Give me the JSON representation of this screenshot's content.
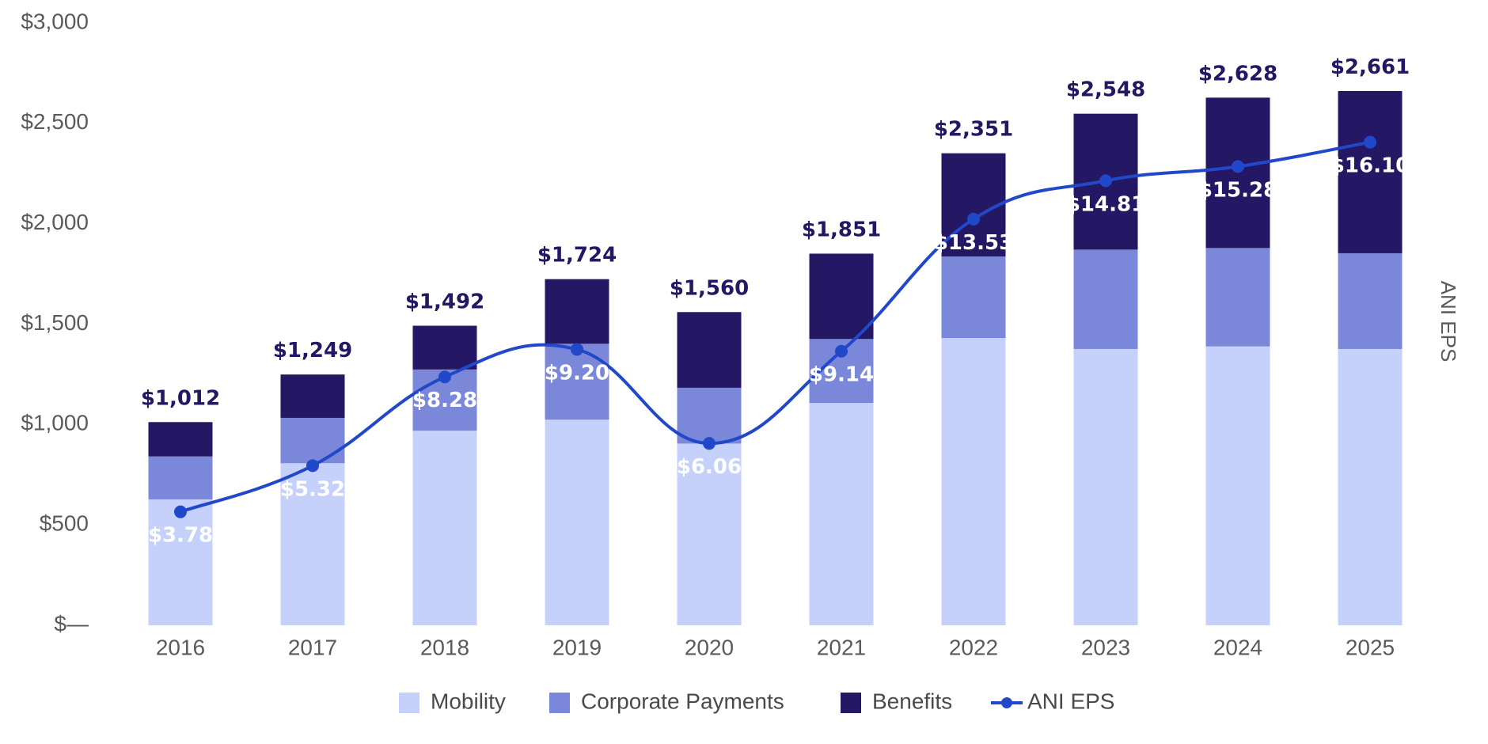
{
  "chart_data": {
    "type": "bar",
    "stacked": true,
    "categories": [
      "2016",
      "2017",
      "2018",
      "2019",
      "2020",
      "2021",
      "2022",
      "2023",
      "2024",
      "2025"
    ],
    "series": [
      {
        "name": "Mobility",
        "color": "#c5d0fb",
        "values": [
          627,
          807,
          969,
          1024,
          905,
          1107,
          1431,
          1376,
          1389,
          1376
        ]
      },
      {
        "name": "Corporate Payments",
        "color": "#7b87d9",
        "values": [
          214,
          226,
          305,
          378,
          278,
          319,
          406,
          495,
          490,
          477
        ]
      },
      {
        "name": "Benefits",
        "color": "#241763",
        "values": [
          171,
          216,
          218,
          322,
          377,
          425,
          514,
          677,
          749,
          808
        ]
      }
    ],
    "totals": [
      1012,
      1249,
      1492,
      1724,
      1560,
      1851,
      2351,
      2548,
      2628,
      2661
    ],
    "total_labels": [
      "$1,012",
      "$1,249",
      "$1,492",
      "$1,724",
      "$1,560",
      "$1,851",
      "$2,351",
      "$2,548",
      "$2,628",
      "$2,661"
    ],
    "line_series": {
      "name": "ANI EPS",
      "color": "#2148c9",
      "values": [
        3.78,
        5.32,
        8.28,
        9.2,
        6.06,
        9.14,
        13.53,
        14.81,
        15.28,
        16.1
      ],
      "labels": [
        "$3.78",
        "$5.32",
        "$8.28",
        "$9.20",
        "$6.06",
        "$9.14",
        "$13.53",
        "$14.81",
        "$15.28",
        "$16.10"
      ],
      "plotted_on_left_axis": [
        565,
        795,
        1237,
        1374,
        906,
        1365,
        2023,
        2214,
        2285,
        2406
      ]
    },
    "y_axis": {
      "ylim": [
        0,
        3000
      ],
      "ticks": [
        0,
        500,
        1000,
        1500,
        2000,
        2500,
        3000
      ],
      "tick_labels": [
        "$—",
        "$500",
        "$1,000",
        "$1,500",
        "$2,000",
        "$2,500",
        "$3,000"
      ]
    },
    "right_axis_title": "ANI EPS",
    "legend": {
      "position": "bottom-center",
      "items": [
        "Mobility",
        "Corporate Payments",
        "Benefits",
        "ANI EPS"
      ]
    },
    "grid": false,
    "title": "",
    "xlabel": ""
  }
}
